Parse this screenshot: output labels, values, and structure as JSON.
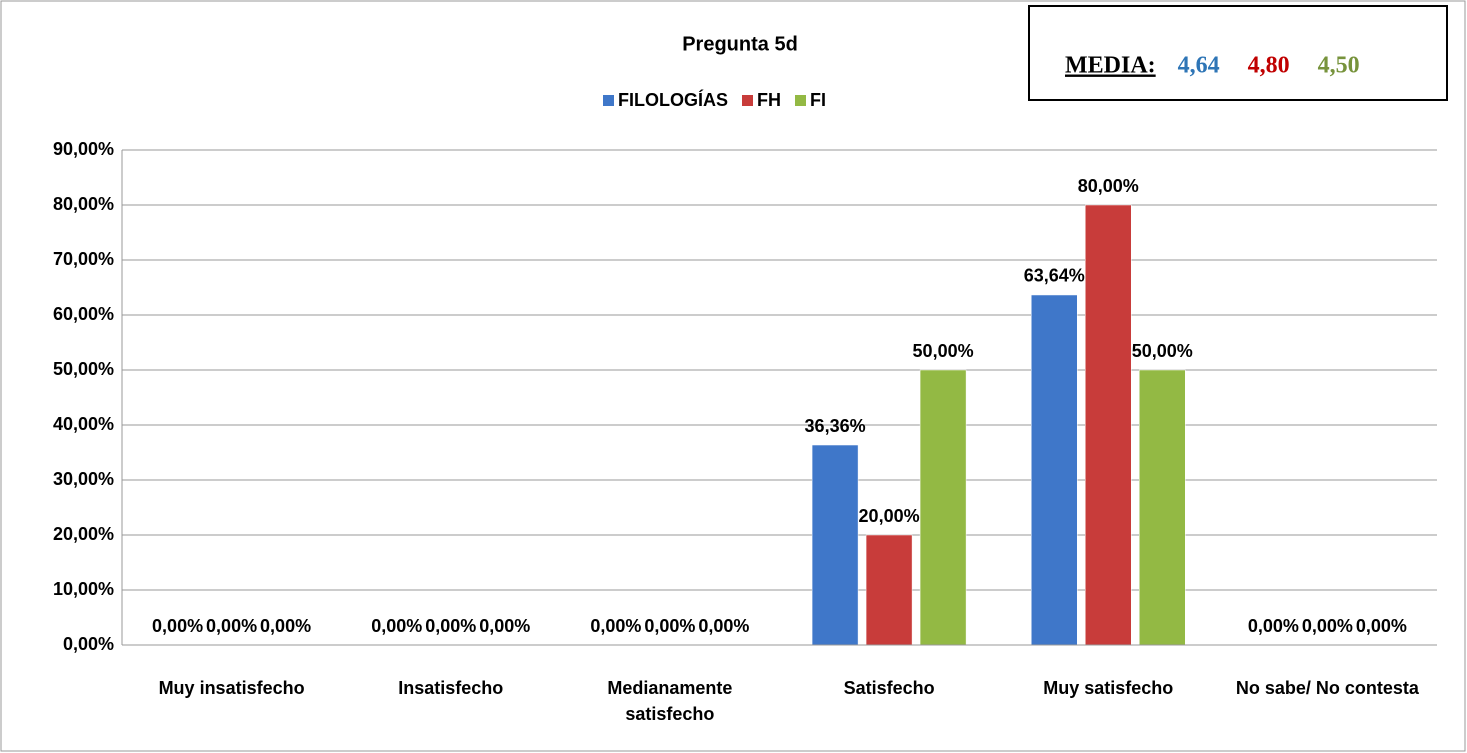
{
  "chart_data": {
    "type": "bar",
    "title": "Pregunta 5d",
    "categories": [
      "Muy insatisfecho",
      "Insatisfecho",
      "Medianamente satisfecho",
      "Satisfecho",
      "Muy satisfecho",
      "No sabe/ No contesta"
    ],
    "series": [
      {
        "name": "FILOLOGÍAS",
        "color": "#3f77c9",
        "values": [
          0,
          0,
          0,
          36.36,
          63.64,
          0
        ],
        "value_labels": [
          "0,00%",
          "0,00%",
          "0,00%",
          "36,36%",
          "63,64%",
          "0,00%"
        ]
      },
      {
        "name": "FH",
        "color": "#c83c3a",
        "values": [
          0,
          0,
          0,
          20,
          80,
          0
        ],
        "value_labels": [
          "0,00%",
          "0,00%",
          "0,00%",
          "20,00%",
          "80,00%",
          "0,00%"
        ]
      },
      {
        "name": "FI",
        "color": "#93b944",
        "values": [
          0,
          0,
          0,
          50,
          50,
          0
        ],
        "value_labels": [
          "0,00%",
          "0,00%",
          "0,00%",
          "50,00%",
          "50,00%",
          "0,00%"
        ]
      }
    ],
    "ylim": [
      0,
      90
    ],
    "yticks": [
      {
        "value": 0,
        "label": "0,00%"
      },
      {
        "value": 10,
        "label": "10,00%"
      },
      {
        "value": 20,
        "label": "20,00%"
      },
      {
        "value": 30,
        "label": "30,00%"
      },
      {
        "value": 40,
        "label": "40,00%"
      },
      {
        "value": 50,
        "label": "50,00%"
      },
      {
        "value": 60,
        "label": "60,00%"
      },
      {
        "value": 70,
        "label": "70,00%"
      },
      {
        "value": 80,
        "label": "80,00%"
      },
      {
        "value": 90,
        "label": "90,00%"
      }
    ],
    "grid": true,
    "legend": "top",
    "media": {
      "label": "MEDIA:",
      "values": [
        "4,64",
        "4,80",
        "4,50"
      ],
      "colors": [
        "#2e75b6",
        "#c00000",
        "#77933c"
      ]
    }
  }
}
